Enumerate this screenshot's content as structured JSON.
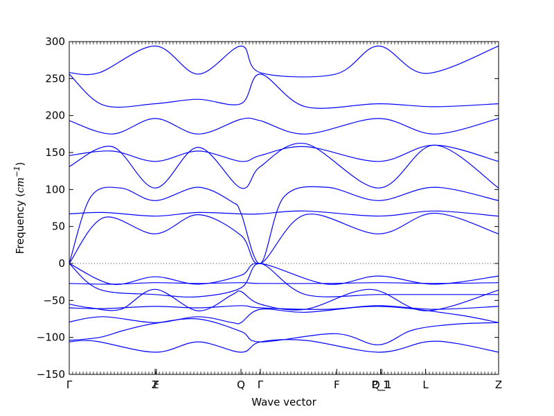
{
  "chart_data": {
    "type": "line",
    "xlabel": "Wave vector",
    "ylabel_text": "Frequency (",
    "ylabel_unit": "cm",
    "ylabel_exp": "−1",
    "ylabel_close": ")",
    "ylim": [
      -150,
      300
    ],
    "y_ticks": [
      -150,
      -100,
      -50,
      0,
      50,
      100,
      150,
      200,
      250,
      300
    ],
    "x_ticks": [
      {
        "label": "Γ",
        "x": 0
      },
      {
        "label": "Z",
        "x": 0.2
      },
      {
        "label": "F",
        "x": 0.203
      },
      {
        "label": "Q",
        "x": 0.4
      },
      {
        "label": "Γ",
        "x": 0.445
      },
      {
        "label": "F",
        "x": 0.623
      },
      {
        "label": "P_1",
        "x": 0.725
      },
      {
        "label": "Q_1",
        "x": 0.728
      },
      {
        "label": "L",
        "x": 0.83
      },
      {
        "label": "Z",
        "x": 1.0
      }
    ],
    "zero_line": true,
    "line_color": "#0000ff",
    "series": [
      {
        "x": [
          0,
          0.07,
          0.13,
          0.2,
          0.3,
          0.4,
          0.445,
          0.62,
          0.72,
          0.8,
          0.9,
          1.0
        ],
        "values": [
          -104,
          -100,
          -90,
          -81,
          -75,
          -92,
          -106,
          -95,
          -110,
          -90,
          -82,
          -80
        ]
      },
      {
        "x": [
          0,
          0.06,
          0.2,
          0.3,
          0.4,
          0.445,
          0.55,
          0.72,
          0.83,
          0.9,
          1.0
        ],
        "values": [
          -106,
          -105,
          -120,
          -106,
          -120,
          -106,
          -104,
          -120,
          -106,
          -108,
          -120
        ]
      },
      {
        "x": [
          0,
          0.08,
          0.2,
          0.3,
          0.38,
          0.4,
          0.445,
          0.55,
          0.72,
          0.9,
          1.0
        ],
        "values": [
          -79,
          -72,
          -80,
          -72,
          -80,
          -80,
          -62,
          -66,
          -58,
          -69,
          -80
        ]
      },
      {
        "x": [
          0,
          0.08,
          0.2,
          0.3,
          0.4,
          0.445,
          0.6,
          0.72,
          0.85,
          1.0
        ],
        "values": [
          -60,
          -61,
          -58,
          -60,
          -57,
          -60,
          -62,
          -57,
          -62,
          -58
        ]
      },
      {
        "x": [
          0,
          0.05,
          0.12,
          0.2,
          0.3,
          0.38,
          0.4,
          0.445,
          0.55,
          0.7,
          0.83,
          1.0
        ],
        "values": [
          -55,
          -60,
          -62,
          -35,
          -64,
          -42,
          -38,
          -55,
          -62,
          -35,
          -64,
          -36
        ]
      },
      {
        "x": [
          0,
          0.07,
          0.2,
          0.3,
          0.4,
          0.445,
          0.55,
          0.72,
          0.85,
          1.0
        ],
        "values": [
          0,
          -35,
          -42,
          -45,
          -33,
          0,
          -42,
          -42,
          -42,
          -42
        ]
      },
      {
        "x": [
          0,
          0.1,
          0.2,
          0.3,
          0.4,
          0.445,
          0.6,
          0.72,
          0.85,
          1.0
        ],
        "values": [
          0,
          -28,
          -18,
          -28,
          -16,
          0,
          -28,
          -17,
          -28,
          -17
        ]
      },
      {
        "x": [
          0,
          0.1,
          0.2,
          0.3,
          0.4,
          0.445,
          0.6,
          0.72,
          0.85,
          1.0
        ],
        "values": [
          -27,
          -28,
          -26,
          -27,
          -26,
          -27,
          -27,
          -26,
          -27,
          -26
        ]
      },
      {
        "x": [
          0,
          0.08,
          0.2,
          0.3,
          0.4,
          0.445,
          0.55,
          0.72,
          0.85,
          1.0
        ],
        "values": [
          0,
          62,
          40,
          66,
          38,
          0,
          66,
          40,
          68,
          40
        ]
      },
      {
        "x": [
          0,
          0.08,
          0.2,
          0.3,
          0.4,
          0.445,
          0.55,
          0.72,
          0.85,
          1.0
        ],
        "values": [
          67,
          69,
          64,
          69,
          67,
          67,
          71,
          64,
          71,
          64
        ]
      },
      {
        "x": [
          0,
          0.05,
          0.12,
          0.2,
          0.3,
          0.38,
          0.4,
          0.445,
          0.5,
          0.6,
          0.72,
          0.85,
          1.0
        ],
        "values": [
          0,
          90,
          102,
          85,
          103,
          83,
          68,
          0,
          90,
          103,
          85,
          103,
          85
        ]
      },
      {
        "x": [
          0,
          0.1,
          0.2,
          0.3,
          0.4,
          0.445,
          0.55,
          0.72,
          0.85,
          1.0
        ],
        "values": [
          131,
          158,
          102,
          157,
          102,
          131,
          162,
          102,
          160,
          102
        ]
      },
      {
        "x": [
          0,
          0.1,
          0.2,
          0.3,
          0.4,
          0.445,
          0.55,
          0.72,
          0.85,
          1.0
        ],
        "values": [
          146,
          152,
          138,
          152,
          138,
          146,
          158,
          138,
          160,
          138
        ]
      },
      {
        "x": [
          0,
          0.1,
          0.2,
          0.3,
          0.4,
          0.445,
          0.55,
          0.72,
          0.85,
          1.0
        ],
        "values": [
          193,
          175,
          196,
          175,
          195,
          193,
          175,
          196,
          175,
          196
        ]
      },
      {
        "x": [
          0,
          0.08,
          0.2,
          0.3,
          0.4,
          0.445,
          0.55,
          0.72,
          0.85,
          1.0
        ],
        "values": [
          256,
          214,
          216,
          222,
          216,
          256,
          212,
          216,
          212,
          216
        ]
      },
      {
        "x": [
          0,
          0.07,
          0.2,
          0.3,
          0.4,
          0.445,
          0.62,
          0.72,
          0.83,
          1.0
        ],
        "values": [
          258,
          258,
          294,
          256,
          294,
          258,
          256,
          294,
          257,
          294
        ]
      }
    ]
  }
}
